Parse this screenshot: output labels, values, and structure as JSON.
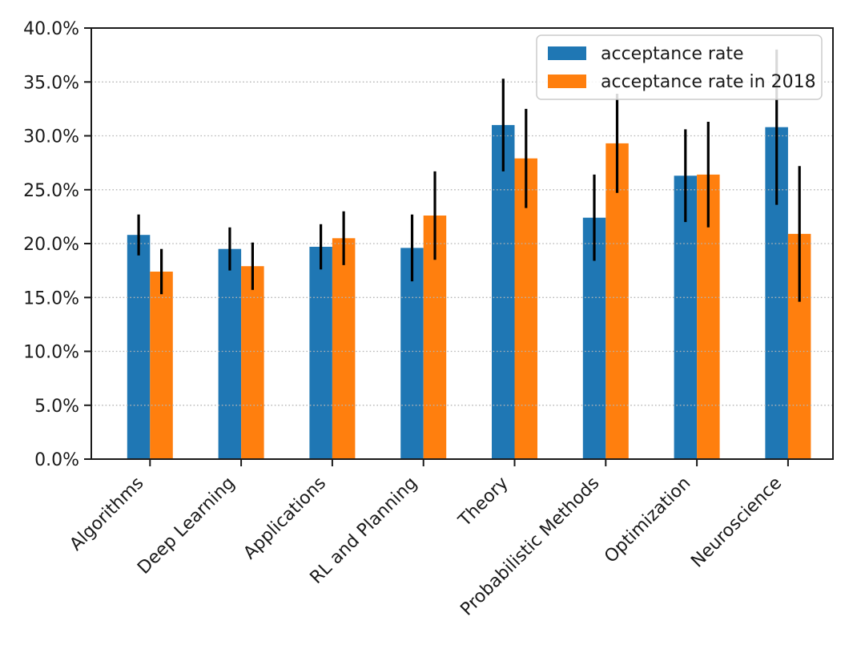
{
  "chart_data": {
    "type": "bar",
    "title": "",
    "xlabel": "",
    "ylabel": "",
    "categories": [
      "Algorithms",
      "Deep Learning",
      "Applications",
      "RL and Planning",
      "Theory",
      "Probabilistic Methods",
      "Optimization",
      "Neuroscience"
    ],
    "series": [
      {
        "name": "acceptance rate",
        "color": "#1f77b4",
        "values": [
          20.8,
          19.5,
          19.7,
          19.6,
          31.0,
          22.4,
          26.3,
          30.8
        ],
        "errors": [
          1.9,
          2.0,
          2.1,
          3.1,
          4.3,
          4.0,
          4.3,
          7.2
        ]
      },
      {
        "name": "acceptance rate in 2018",
        "color": "#ff7f0e",
        "values": [
          17.4,
          17.9,
          20.5,
          22.6,
          27.9,
          29.3,
          26.4,
          20.9
        ],
        "errors": [
          2.1,
          2.2,
          2.5,
          4.1,
          4.6,
          4.6,
          4.9,
          6.3
        ]
      }
    ],
    "ylim": [
      0,
      40
    ],
    "ytick_step": 5,
    "y_tick_labels": [
      "0.0%",
      "5.0%",
      "10.0%",
      "15.0%",
      "20.0%",
      "25.0%",
      "30.0%",
      "35.0%",
      "40.0%"
    ],
    "grid": "horizontal-dotted",
    "grid_on_top_of_bars": true,
    "gridline_color": "#b5b5b5",
    "error_bar_color": "#000000",
    "axis_color": "#1a1a1a",
    "text_color": "#1a1a1a",
    "legend_position": "upper-right",
    "legend_border_color": "#cccccc",
    "background": "#ffffff",
    "xtick_rotation_deg": 45
  }
}
